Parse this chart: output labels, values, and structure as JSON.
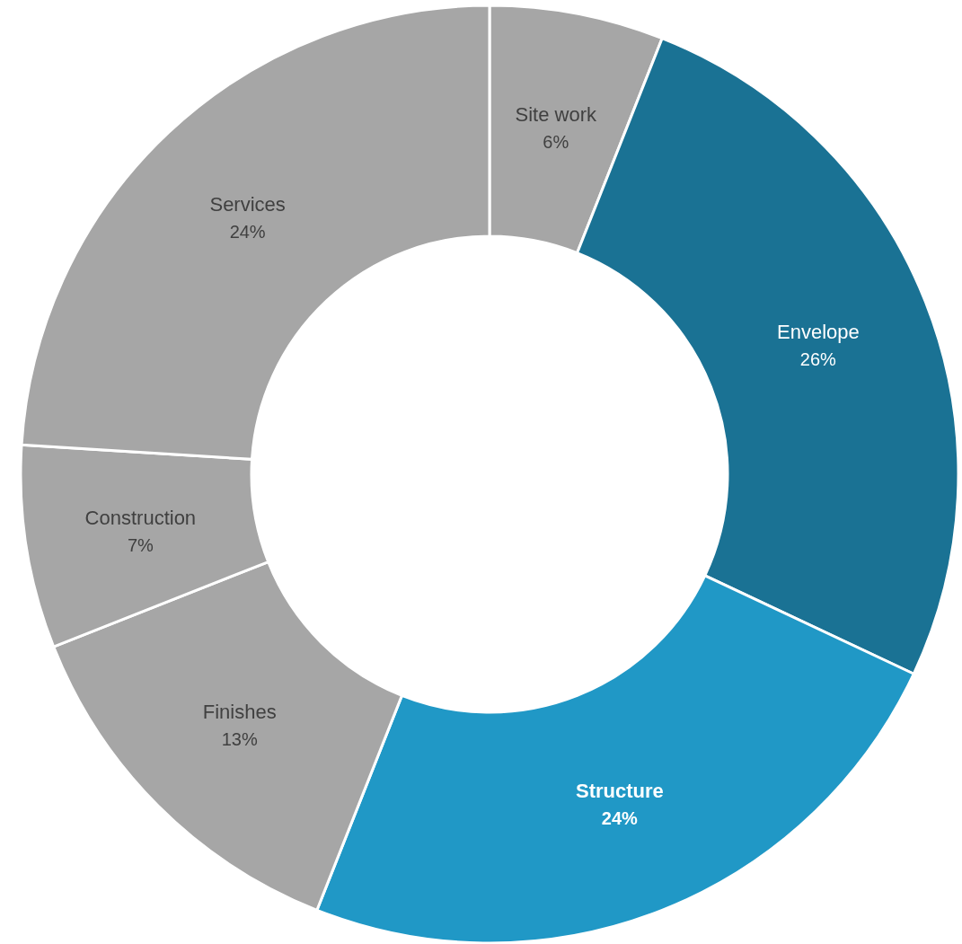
{
  "chart_data": {
    "type": "donut",
    "categories": [
      "Site work",
      "Envelope",
      "Structure",
      "Finishes",
      "Construction",
      "Services"
    ],
    "values": [
      6,
      26,
      24,
      13,
      7,
      24
    ],
    "colors": [
      "#a6a6a6",
      "#1a7294",
      "#2098c6",
      "#a6a6a6",
      "#a6a6a6",
      "#a6a6a6"
    ],
    "value_labels": [
      "6%",
      "26%",
      "24%",
      "13%",
      "7%",
      "24%"
    ]
  }
}
